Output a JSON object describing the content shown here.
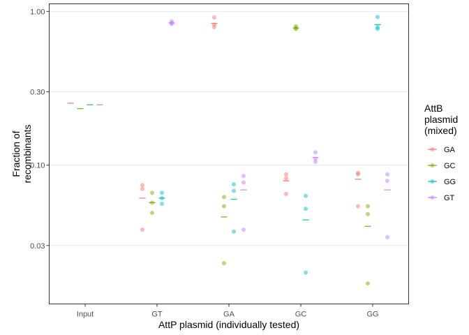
{
  "chart_data": {
    "type": "scatter",
    "xlabel": "AttP plasmid (individually tested)",
    "ylabel": [
      "Fraction of",
      "recombinants"
    ],
    "y_scale": "log10",
    "ylim": [
      0.0125,
      1.12
    ],
    "yticks": [
      {
        "value": 1.0,
        "label": "1.00"
      },
      {
        "value": 0.3,
        "label": "0.30"
      },
      {
        "value": 0.1,
        "label": "0.10"
      },
      {
        "value": 0.03,
        "label": "0.03"
      }
    ],
    "categories": [
      "Input",
      "GT",
      "GA",
      "GC",
      "GG"
    ],
    "grid": true,
    "legend": {
      "title": [
        "AttB",
        "plasmid",
        "(mixed)"
      ],
      "placement": "right"
    },
    "series": [
      {
        "name": "GA",
        "color": "#F8766D",
        "points": [
          {
            "x": "GT",
            "y": 0.074
          },
          {
            "x": "GT",
            "y": 0.07
          },
          {
            "x": "GT",
            "y": 0.038
          },
          {
            "x": "GA",
            "y": 0.915
          },
          {
            "x": "GA",
            "y": 0.82
          },
          {
            "x": "GA",
            "y": 0.79
          },
          {
            "x": "GC",
            "y": 0.087
          },
          {
            "x": "GC",
            "y": 0.082
          },
          {
            "x": "GC",
            "y": 0.065
          },
          {
            "x": "GG",
            "y": 0.089
          },
          {
            "x": "GG",
            "y": 0.087
          },
          {
            "x": "GG",
            "y": 0.054
          }
        ],
        "means": [
          {
            "x": "Input",
            "y": 0.253
          },
          {
            "x": "GT",
            "y": 0.061
          },
          {
            "x": "GA",
            "y": 0.835
          },
          {
            "x": "GC",
            "y": 0.079
          },
          {
            "x": "GG",
            "y": 0.081
          }
        ]
      },
      {
        "name": "GC",
        "color": "#7CAE00",
        "points": [
          {
            "x": "GT",
            "y": 0.066
          },
          {
            "x": "GT",
            "y": 0.057
          },
          {
            "x": "GT",
            "y": 0.049
          },
          {
            "x": "GA",
            "y": 0.062
          },
          {
            "x": "GA",
            "y": 0.054
          },
          {
            "x": "GA",
            "y": 0.023
          },
          {
            "x": "GC",
            "y": 0.8
          },
          {
            "x": "GC",
            "y": 0.78
          },
          {
            "x": "GC",
            "y": 0.77
          },
          {
            "x": "GG",
            "y": 0.054
          },
          {
            "x": "GG",
            "y": 0.048
          },
          {
            "x": "GG",
            "y": 0.017
          }
        ],
        "means": [
          {
            "x": "Input",
            "y": 0.233
          },
          {
            "x": "GT",
            "y": 0.057
          },
          {
            "x": "GA",
            "y": 0.046
          },
          {
            "x": "GC",
            "y": 0.78
          },
          {
            "x": "GG",
            "y": 0.04
          }
        ]
      },
      {
        "name": "GG",
        "color": "#00BFC4",
        "points": [
          {
            "x": "GT",
            "y": 0.066
          },
          {
            "x": "GT",
            "y": 0.061
          },
          {
            "x": "GT",
            "y": 0.056
          },
          {
            "x": "GA",
            "y": 0.075
          },
          {
            "x": "GA",
            "y": 0.068
          },
          {
            "x": "GA",
            "y": 0.037
          },
          {
            "x": "GC",
            "y": 0.063
          },
          {
            "x": "GC",
            "y": 0.052
          },
          {
            "x": "GC",
            "y": 0.02
          },
          {
            "x": "GG",
            "y": 0.92
          },
          {
            "x": "GG",
            "y": 0.79
          },
          {
            "x": "GG",
            "y": 0.77
          }
        ],
        "means": [
          {
            "x": "Input",
            "y": 0.247
          },
          {
            "x": "GT",
            "y": 0.061
          },
          {
            "x": "GA",
            "y": 0.06
          },
          {
            "x": "GC",
            "y": 0.044
          },
          {
            "x": "GG",
            "y": 0.82
          }
        ]
      },
      {
        "name": "GT",
        "color": "#C77CFF",
        "points": [
          {
            "x": "GT",
            "y": 0.86
          },
          {
            "x": "GT",
            "y": 0.84
          },
          {
            "x": "GT",
            "y": 0.83
          },
          {
            "x": "GA",
            "y": 0.085
          },
          {
            "x": "GA",
            "y": 0.077
          },
          {
            "x": "GA",
            "y": 0.038
          },
          {
            "x": "GC",
            "y": 0.121
          },
          {
            "x": "GC",
            "y": 0.11
          },
          {
            "x": "GC",
            "y": 0.105
          },
          {
            "x": "GG",
            "y": 0.087
          },
          {
            "x": "GG",
            "y": 0.079
          },
          {
            "x": "GG",
            "y": 0.034
          }
        ],
        "means": [
          {
            "x": "Input",
            "y": 0.247
          },
          {
            "x": "GT",
            "y": 0.84
          },
          {
            "x": "GA",
            "y": 0.069
          },
          {
            "x": "GC",
            "y": 0.112
          },
          {
            "x": "GG",
            "y": 0.069
          }
        ]
      }
    ]
  }
}
